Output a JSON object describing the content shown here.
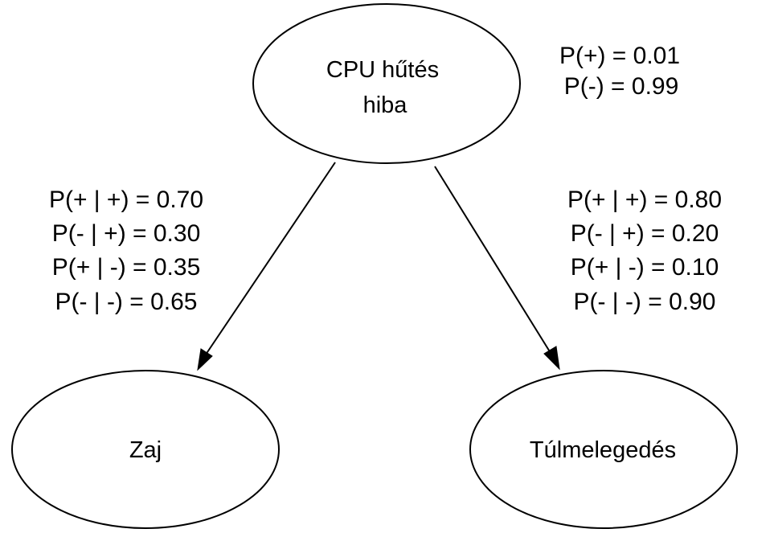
{
  "nodes": {
    "cpu": {
      "label_line1": "CPU hűtés",
      "label_line2": "hiba"
    },
    "zaj": {
      "label": "Zaj"
    },
    "tul": {
      "label": "Túlmelegedés"
    }
  },
  "prior_table": {
    "lines": [
      "P(+) = 0.01",
      "P(-) = 0.99"
    ]
  },
  "cpt_zaj": {
    "lines": [
      "P(+ | +) = 0.70",
      "P(- | +) = 0.30",
      "P(+ | -) = 0.35",
      "P(- | -) = 0.65"
    ]
  },
  "cpt_tul": {
    "lines": [
      "P(+ | +) = 0.80",
      "P(- | +) = 0.20",
      "P(+ | -) = 0.10",
      "P(- | -) = 0.90"
    ]
  },
  "colors": {
    "stroke": "#000000",
    "fill": "#ffffff",
    "text": "#000000"
  }
}
